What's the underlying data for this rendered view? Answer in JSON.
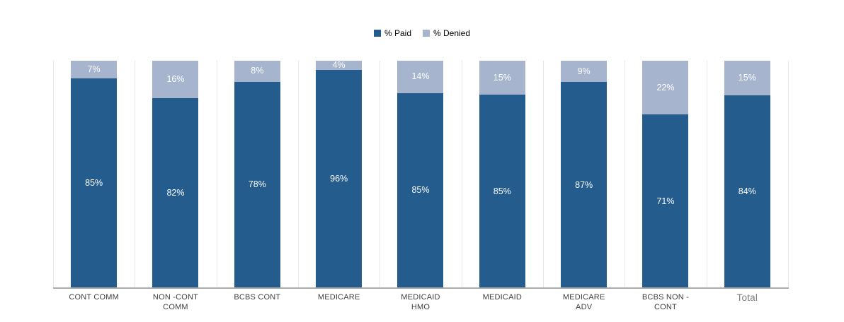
{
  "legend": {
    "paid_label": "% Paid",
    "denied_label": "% Denied"
  },
  "colors": {
    "paid": "#235C8D",
    "denied": "#A6B4CE",
    "value_label": "#FFFFFF",
    "gridline": "#E7E7E7",
    "axis_line": "#ACACAC",
    "category_label": "#3F3F3F",
    "total_label": "#7F7F7F",
    "background": "#FFFFFF"
  },
  "chart_data": {
    "type": "bar",
    "variant": "stacked-percentage-columns",
    "title": "",
    "legend_position": "top-center",
    "grid": "vertical-category-separators",
    "value_suffix": "%",
    "categories": [
      {
        "name": "CONT COMM",
        "lines": [
          "CONT COMM"
        ],
        "emphasis": "normal"
      },
      {
        "name": "NON -CONT COMM",
        "lines": [
          "NON -CONT",
          "COMM"
        ],
        "emphasis": "normal"
      },
      {
        "name": "BCBS CONT",
        "lines": [
          "BCBS CONT"
        ],
        "emphasis": "normal"
      },
      {
        "name": "MEDICARE",
        "lines": [
          "MEDICARE"
        ],
        "emphasis": "normal"
      },
      {
        "name": "MEDICAID HMO",
        "lines": [
          "MEDICAID",
          "HMO"
        ],
        "emphasis": "normal"
      },
      {
        "name": "MEDICAID",
        "lines": [
          "MEDICAID"
        ],
        "emphasis": "normal"
      },
      {
        "name": "MEDICARE ADV",
        "lines": [
          "MEDICARE",
          "ADV"
        ],
        "emphasis": "normal"
      },
      {
        "name": "BCBS NON - CONT",
        "lines": [
          "BCBS NON -",
          "CONT"
        ],
        "emphasis": "normal"
      },
      {
        "name": "Total",
        "lines": [
          "Total"
        ],
        "emphasis": "muted"
      }
    ],
    "series": [
      {
        "name": "% Paid",
        "color": "#235C8D",
        "values": [
          85,
          82,
          78,
          96,
          85,
          85,
          87,
          71,
          84
        ]
      },
      {
        "name": "% Denied",
        "color": "#A6B4CE",
        "values": [
          7,
          16,
          8,
          4,
          14,
          15,
          9,
          22,
          15
        ]
      }
    ]
  }
}
